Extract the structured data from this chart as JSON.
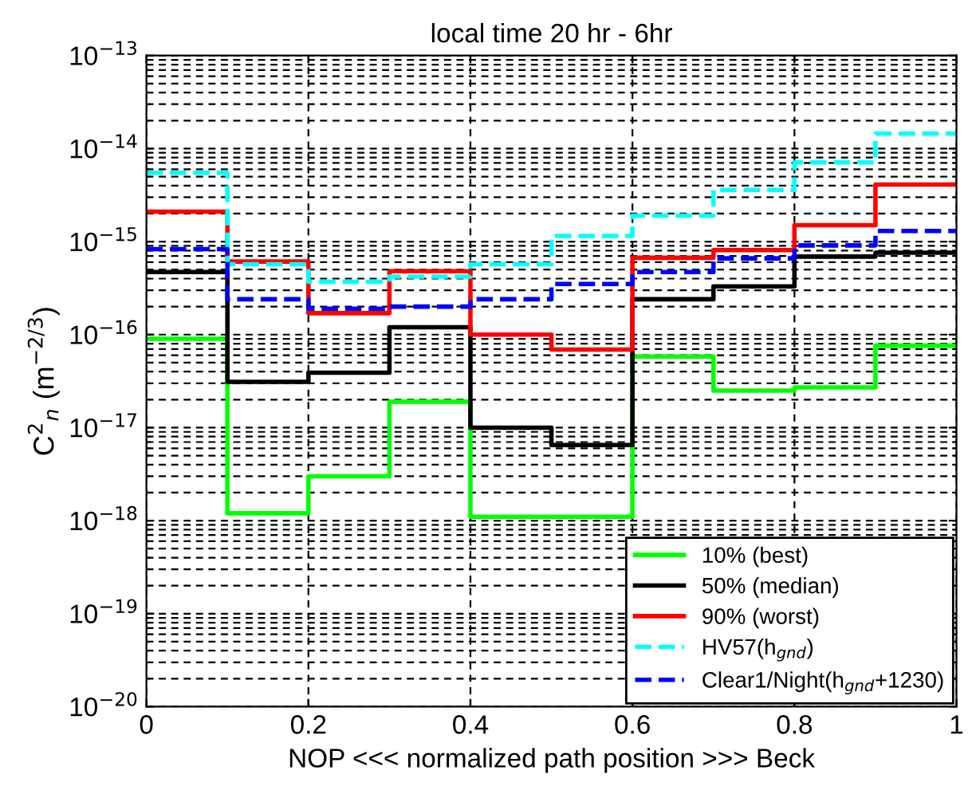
{
  "chart_data": {
    "type": "step",
    "title": "local time 20 hr - 6hr",
    "xlabel": "NOP <<< normalized path position >>> Beck",
    "ylabel": "C$^{2}$$_{n}$ (m$^{−2/3}$)",
    "x": [
      0,
      0.1,
      0.2,
      0.3,
      0.4,
      0.5,
      0.6,
      0.7,
      0.8,
      0.9,
      1.0
    ],
    "series": [
      {
        "name": "10% (best)",
        "color": "#00ff00",
        "line_style": "solid",
        "values": [
          9e-17,
          1.2e-18,
          3e-18,
          1.9e-17,
          1.1e-18,
          1.1e-18,
          5.8e-17,
          2.5e-17,
          2.7e-17,
          7.6e-17,
          7.6e-17
        ]
      },
      {
        "name": "50% (median)",
        "color": "#000000",
        "line_style": "solid",
        "values": [
          4.7e-16,
          3.1e-17,
          3.9e-17,
          1.2e-16,
          1e-17,
          6.5e-18,
          2.4e-16,
          3.3e-16,
          6.9e-16,
          7.6e-16,
          7.6e-16
        ]
      },
      {
        "name": "90% (worst)",
        "color": "#ff0000",
        "line_style": "solid",
        "values": [
          2.1e-15,
          6.1e-16,
          1.7e-16,
          4.8e-16,
          1e-16,
          6.9e-17,
          6.7e-16,
          8.1e-16,
          1.5e-15,
          4.1e-15,
          4.1e-15
        ]
      },
      {
        "name": "HV57(h$_{gnd}$)",
        "color": "#00ffff",
        "line_style": "dashed",
        "values": [
          5.5e-15,
          5.7e-16,
          3.7e-16,
          4.2e-16,
          5.7e-16,
          1.15e-15,
          1.9e-15,
          3.6e-15,
          7.1e-15,
          1.45e-14,
          1.45e-14
        ]
      },
      {
        "name": "Clear1/Night(h$_{gnd}$+1230)",
        "color": "#0000ff",
        "line_style": "dashed",
        "values": [
          8.3e-16,
          2.4e-16,
          1.9e-16,
          2e-16,
          2.4e-16,
          3.5e-16,
          4.7e-16,
          6.6e-16,
          9.1e-16,
          1.3e-15,
          1.3e-15
        ]
      }
    ],
    "log": "y",
    "xlim": [
      0,
      1
    ],
    "ylim": [
      1e-20,
      1e-13
    ],
    "xticks": [
      0,
      0.2,
      0.4,
      0.6,
      0.8,
      1
    ],
    "yticks": [
      {
        "value": 1e-20,
        "label": "10$^{−20}$"
      },
      {
        "value": 1e-19,
        "label": "10$^{−19}$"
      },
      {
        "value": 1e-18,
        "label": "10$^{−18}$"
      },
      {
        "value": 1e-17,
        "label": "10$^{−17}$"
      },
      {
        "value": 1e-16,
        "label": "10$^{−16}$"
      },
      {
        "value": 1e-15,
        "label": "10$^{−15}$"
      },
      {
        "value": 1e-14,
        "label": "10$^{−14}$"
      },
      {
        "value": 1e-13,
        "label": "10$^{−13}$"
      }
    ],
    "grid": true,
    "legend": "bottom right",
    "marker": "none"
  }
}
